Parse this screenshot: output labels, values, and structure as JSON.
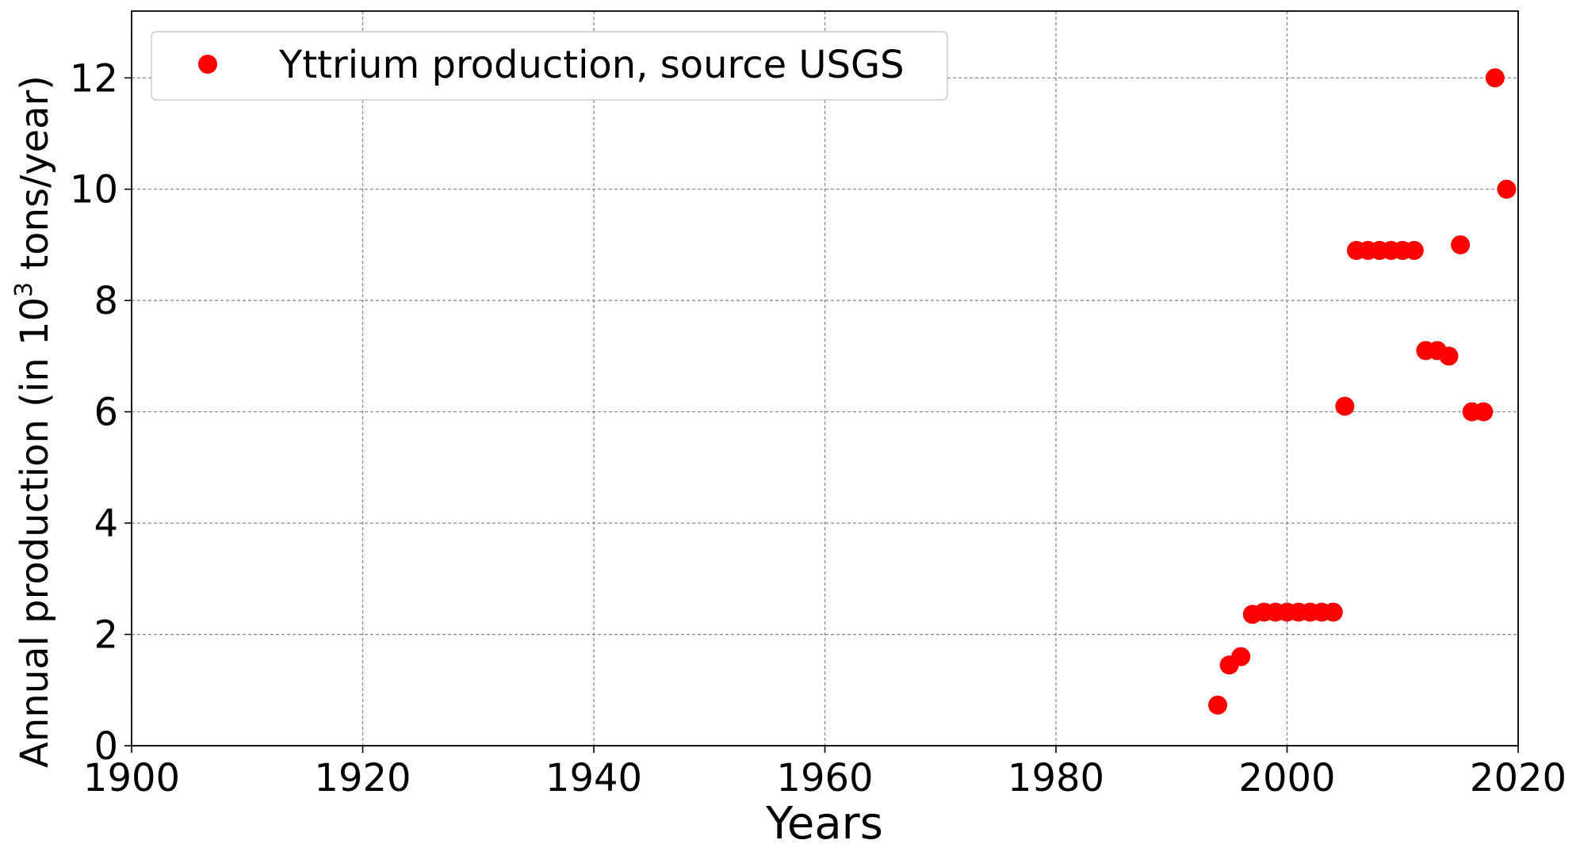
{
  "chart_data": {
    "type": "scatter",
    "title": "",
    "xlabel": "Years",
    "ylabel": {
      "prefix": "Annual production (in 10",
      "superscript": "3",
      "suffix": " tons/year)"
    },
    "xlim": [
      1900,
      2020
    ],
    "ylim": [
      0,
      13.2
    ],
    "x_ticks": [
      1900,
      1920,
      1940,
      1960,
      1980,
      2000,
      2020
    ],
    "y_ticks": [
      0,
      2,
      4,
      6,
      8,
      10,
      12
    ],
    "grid": true,
    "legend": {
      "position": "upper-left"
    },
    "series": [
      {
        "name": "Yttrium production, source USGS",
        "color": "#ff0000",
        "marker": "circle",
        "points": [
          {
            "x": 1994,
            "y": 0.73
          },
          {
            "x": 1995,
            "y": 1.45
          },
          {
            "x": 1996,
            "y": 1.6
          },
          {
            "x": 1997,
            "y": 2.36
          },
          {
            "x": 1998,
            "y": 2.4
          },
          {
            "x": 1999,
            "y": 2.4
          },
          {
            "x": 2000,
            "y": 2.4
          },
          {
            "x": 2001,
            "y": 2.4
          },
          {
            "x": 2002,
            "y": 2.4
          },
          {
            "x": 2003,
            "y": 2.4
          },
          {
            "x": 2004,
            "y": 2.4
          },
          {
            "x": 2005,
            "y": 6.1
          },
          {
            "x": 2006,
            "y": 8.9
          },
          {
            "x": 2007,
            "y": 8.9
          },
          {
            "x": 2008,
            "y": 8.9
          },
          {
            "x": 2009,
            "y": 8.9
          },
          {
            "x": 2010,
            "y": 8.9
          },
          {
            "x": 2011,
            "y": 8.9
          },
          {
            "x": 2012,
            "y": 7.1
          },
          {
            "x": 2013,
            "y": 7.1
          },
          {
            "x": 2014,
            "y": 7.0
          },
          {
            "x": 2015,
            "y": 9.0
          },
          {
            "x": 2016,
            "y": 6.0
          },
          {
            "x": 2017,
            "y": 6.0
          },
          {
            "x": 2018,
            "y": 12.0
          },
          {
            "x": 2019,
            "y": 10.0
          }
        ]
      }
    ]
  }
}
